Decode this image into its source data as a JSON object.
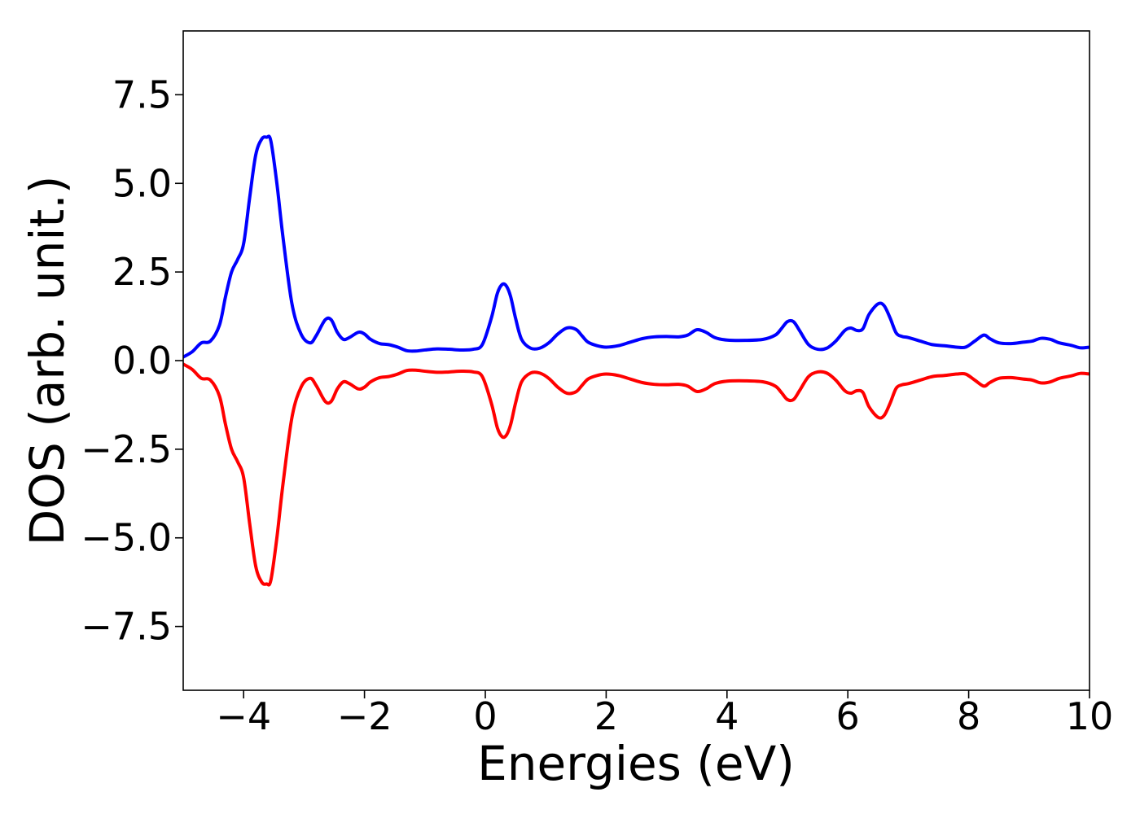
{
  "chart_data": {
    "type": "line",
    "title": "",
    "xlabel": "Energies (eV)",
    "ylabel": "DOS (arb. unit.)",
    "xlim": [
      -5,
      10
    ],
    "ylim": [
      -9.3,
      9.3
    ],
    "xticks": [
      -4,
      -2,
      0,
      2,
      4,
      6,
      8,
      10
    ],
    "xtick_labels": [
      "−4",
      "−2",
      "0",
      "2",
      "4",
      "6",
      "8",
      "10"
    ],
    "yticks": [
      7.5,
      5.0,
      2.5,
      0.0,
      -2.5,
      -5.0,
      -7.5
    ],
    "ytick_labels": [
      "7.5",
      "5.0",
      "2.5",
      "0.0",
      "−2.5",
      "−5.0",
      "−7.5"
    ],
    "grid": false,
    "legend": "none",
    "series": [
      {
        "color": "#0000ff",
        "x": [
          -5.0,
          -4.85,
          -4.7,
          -4.55,
          -4.4,
          -4.3,
          -4.2,
          -4.1,
          -4.0,
          -3.9,
          -3.8,
          -3.7,
          -3.62,
          -3.55,
          -3.45,
          -3.35,
          -3.2,
          -3.05,
          -2.9,
          -2.8,
          -2.65,
          -2.55,
          -2.45,
          -2.35,
          -2.25,
          -2.1,
          -2.0,
          -1.9,
          -1.75,
          -1.6,
          -1.45,
          -1.3,
          -1.15,
          -1.0,
          -0.8,
          -0.6,
          -0.4,
          -0.2,
          -0.05,
          0.1,
          0.2,
          0.28,
          0.35,
          0.42,
          0.5,
          0.6,
          0.75,
          0.9,
          1.05,
          1.2,
          1.35,
          1.5,
          1.6,
          1.7,
          1.85,
          2.0,
          2.2,
          2.4,
          2.6,
          2.8,
          3.0,
          3.2,
          3.35,
          3.5,
          3.65,
          3.8,
          4.0,
          4.3,
          4.6,
          4.8,
          4.9,
          5.0,
          5.1,
          5.2,
          5.35,
          5.5,
          5.65,
          5.8,
          5.95,
          6.05,
          6.15,
          6.25,
          6.35,
          6.5,
          6.6,
          6.7,
          6.8,
          6.9,
          7.0,
          7.2,
          7.4,
          7.6,
          7.8,
          7.95,
          8.1,
          8.25,
          8.35,
          8.5,
          8.7,
          8.9,
          9.05,
          9.2,
          9.35,
          9.5,
          9.7,
          9.85,
          10.0
        ],
        "y": [
          0.1,
          0.25,
          0.5,
          0.55,
          1.0,
          1.8,
          2.5,
          2.85,
          3.3,
          4.6,
          5.8,
          6.25,
          6.3,
          6.2,
          5.0,
          3.5,
          1.6,
          0.75,
          0.5,
          0.7,
          1.15,
          1.15,
          0.8,
          0.6,
          0.65,
          0.8,
          0.75,
          0.6,
          0.48,
          0.45,
          0.38,
          0.28,
          0.27,
          0.3,
          0.33,
          0.32,
          0.3,
          0.32,
          0.45,
          1.2,
          1.9,
          2.15,
          2.1,
          1.8,
          1.2,
          0.6,
          0.35,
          0.35,
          0.5,
          0.75,
          0.92,
          0.88,
          0.7,
          0.52,
          0.42,
          0.38,
          0.42,
          0.52,
          0.62,
          0.67,
          0.68,
          0.67,
          0.72,
          0.87,
          0.8,
          0.65,
          0.58,
          0.57,
          0.6,
          0.72,
          0.9,
          1.1,
          1.1,
          0.85,
          0.45,
          0.32,
          0.35,
          0.55,
          0.85,
          0.92,
          0.85,
          0.9,
          1.3,
          1.6,
          1.55,
          1.2,
          0.78,
          0.68,
          0.65,
          0.55,
          0.45,
          0.42,
          0.38,
          0.38,
          0.55,
          0.72,
          0.62,
          0.5,
          0.48,
          0.52,
          0.55,
          0.63,
          0.6,
          0.5,
          0.43,
          0.36,
          0.38
        ]
      },
      {
        "color": "#ff0000",
        "x": [
          -5.0,
          -4.85,
          -4.7,
          -4.55,
          -4.4,
          -4.3,
          -4.2,
          -4.1,
          -4.0,
          -3.9,
          -3.8,
          -3.7,
          -3.62,
          -3.55,
          -3.45,
          -3.35,
          -3.2,
          -3.05,
          -2.9,
          -2.8,
          -2.65,
          -2.55,
          -2.45,
          -2.35,
          -2.25,
          -2.1,
          -2.0,
          -1.9,
          -1.75,
          -1.6,
          -1.45,
          -1.3,
          -1.15,
          -1.0,
          -0.8,
          -0.6,
          -0.4,
          -0.2,
          -0.05,
          0.1,
          0.2,
          0.28,
          0.35,
          0.42,
          0.5,
          0.6,
          0.75,
          0.9,
          1.05,
          1.2,
          1.35,
          1.5,
          1.6,
          1.7,
          1.85,
          2.0,
          2.2,
          2.4,
          2.6,
          2.8,
          3.0,
          3.2,
          3.35,
          3.5,
          3.65,
          3.8,
          4.0,
          4.3,
          4.6,
          4.8,
          4.9,
          5.0,
          5.1,
          5.2,
          5.35,
          5.5,
          5.65,
          5.8,
          5.95,
          6.05,
          6.15,
          6.25,
          6.35,
          6.5,
          6.6,
          6.7,
          6.8,
          6.9,
          7.0,
          7.2,
          7.4,
          7.6,
          7.8,
          7.95,
          8.1,
          8.25,
          8.35,
          8.5,
          8.7,
          8.9,
          9.05,
          9.2,
          9.35,
          9.5,
          9.7,
          9.85,
          10.0
        ],
        "y": [
          -0.1,
          -0.25,
          -0.5,
          -0.55,
          -1.0,
          -1.8,
          -2.5,
          -2.85,
          -3.3,
          -4.6,
          -5.8,
          -6.25,
          -6.3,
          -6.2,
          -5.0,
          -3.5,
          -1.6,
          -0.75,
          -0.5,
          -0.7,
          -1.15,
          -1.15,
          -0.8,
          -0.6,
          -0.65,
          -0.8,
          -0.75,
          -0.6,
          -0.48,
          -0.45,
          -0.38,
          -0.28,
          -0.27,
          -0.3,
          -0.33,
          -0.32,
          -0.3,
          -0.32,
          -0.45,
          -1.2,
          -1.9,
          -2.15,
          -2.1,
          -1.8,
          -1.2,
          -0.6,
          -0.35,
          -0.35,
          -0.5,
          -0.75,
          -0.92,
          -0.88,
          -0.7,
          -0.52,
          -0.42,
          -0.38,
          -0.42,
          -0.52,
          -0.62,
          -0.67,
          -0.68,
          -0.67,
          -0.72,
          -0.87,
          -0.8,
          -0.65,
          -0.58,
          -0.57,
          -0.6,
          -0.72,
          -0.9,
          -1.1,
          -1.1,
          -0.85,
          -0.45,
          -0.32,
          -0.35,
          -0.55,
          -0.85,
          -0.92,
          -0.85,
          -0.9,
          -1.3,
          -1.6,
          -1.55,
          -1.2,
          -0.78,
          -0.68,
          -0.65,
          -0.55,
          -0.45,
          -0.42,
          -0.38,
          -0.38,
          -0.55,
          -0.72,
          -0.62,
          -0.5,
          -0.48,
          -0.52,
          -0.55,
          -0.63,
          -0.6,
          -0.5,
          -0.43,
          -0.36,
          -0.38
        ]
      }
    ]
  }
}
